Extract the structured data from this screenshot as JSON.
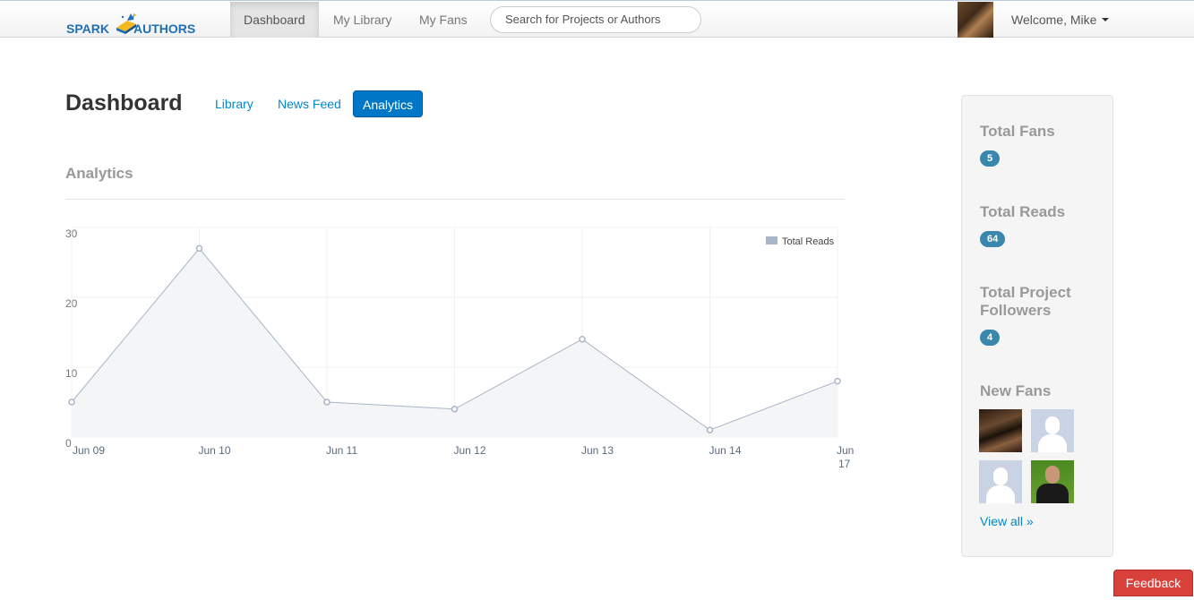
{
  "brand": {
    "part1": "SPARK",
    "part2": "AUTHORS"
  },
  "nav": {
    "items": [
      {
        "label": "Dashboard",
        "active": true
      },
      {
        "label": "My Library",
        "active": false
      },
      {
        "label": "My Fans",
        "active": false
      }
    ],
    "search_placeholder": "Search for Projects or Authors",
    "welcome": "Welcome, Mike"
  },
  "page": {
    "title": "Dashboard",
    "tabs": [
      {
        "label": "Library",
        "active": false
      },
      {
        "label": "News Feed",
        "active": false
      },
      {
        "label": "Analytics",
        "active": true
      }
    ],
    "section_title": "Analytics"
  },
  "chart_data": {
    "type": "area",
    "categories": [
      "Jun 09",
      "Jun 10",
      "Jun 11",
      "Jun 12",
      "Jun 13",
      "Jun 14",
      "Jun 17"
    ],
    "series": [
      {
        "name": "Total Reads",
        "values": [
          5,
          27,
          5,
          4,
          14,
          1,
          8
        ]
      }
    ],
    "ylim": [
      0,
      30
    ],
    "yticks": [
      0,
      10,
      20,
      30
    ],
    "grid": true,
    "legend": "top-right",
    "colors": {
      "line": "#a9b5c8",
      "fill": "#f4f5f7",
      "legend": "#a9b5c8"
    }
  },
  "sidebar": {
    "stats": [
      {
        "title": "Total Fans",
        "value": "5"
      },
      {
        "title": "Total Reads",
        "value": "64"
      },
      {
        "title": "Total Project Followers",
        "value": "4"
      }
    ],
    "new_fans_title": "New Fans",
    "view_all": "View all »"
  },
  "feedback_label": "Feedback"
}
